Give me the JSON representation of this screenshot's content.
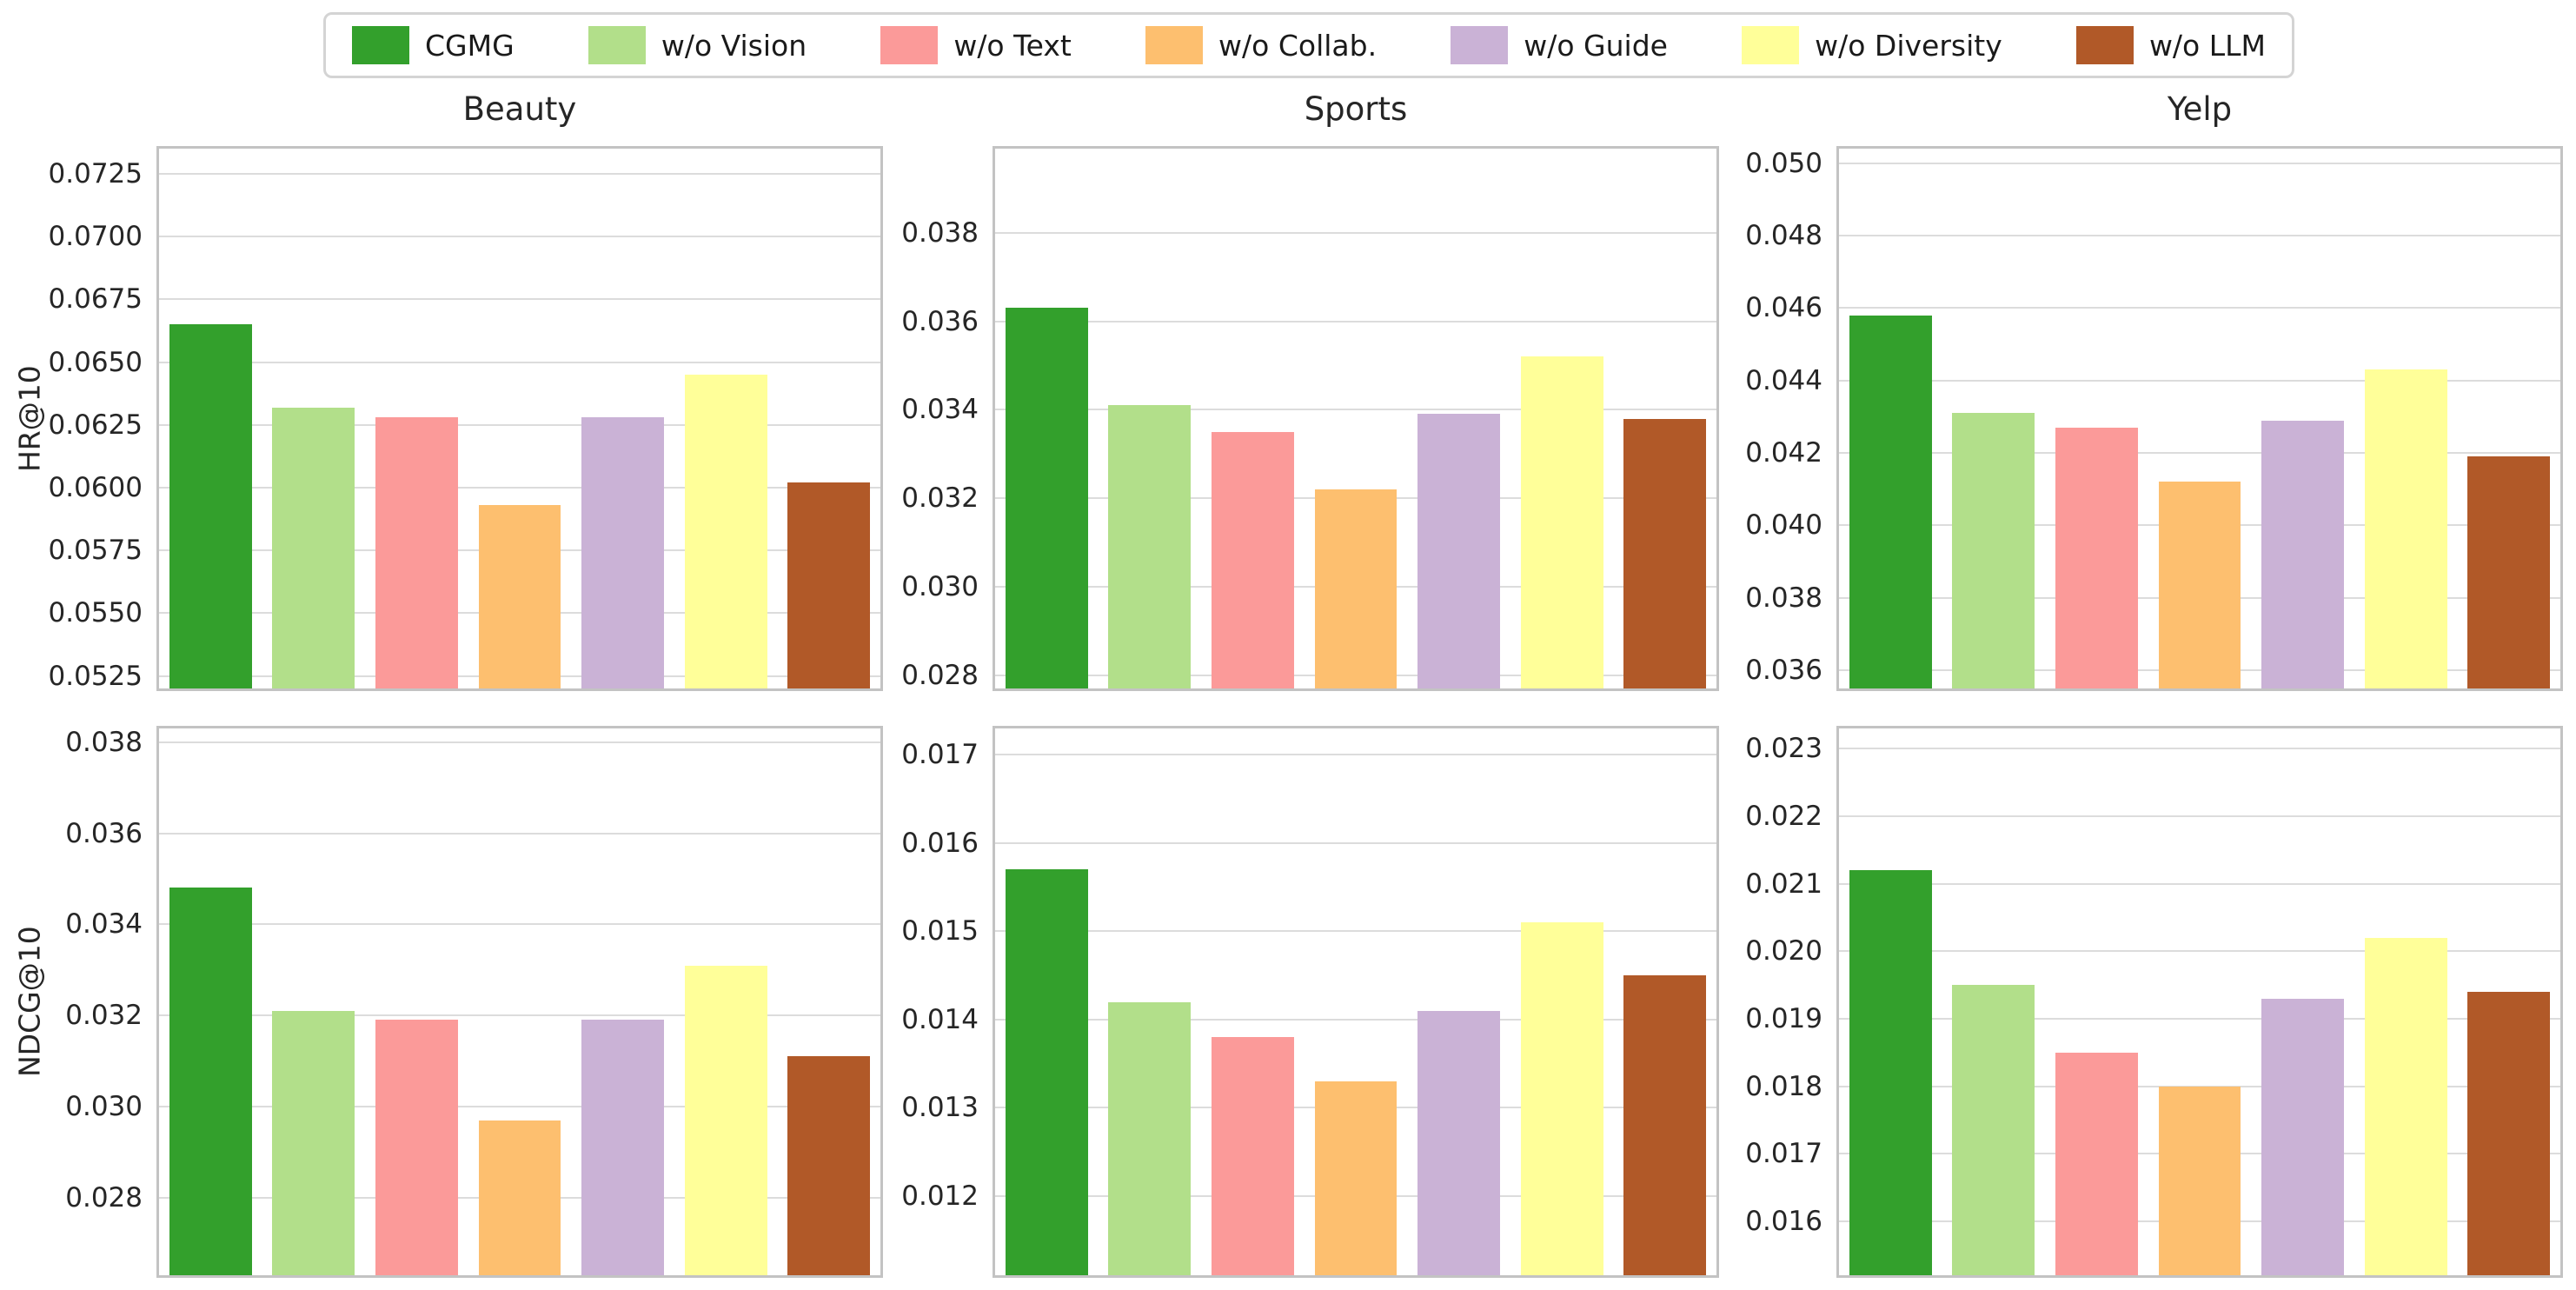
{
  "legend": {
    "items": [
      {
        "label": "CGMG",
        "color": "#33a02c"
      },
      {
        "label": "w/o Vision",
        "color": "#b2df8a"
      },
      {
        "label": "w/o Text",
        "color": "#fb9a99"
      },
      {
        "label": "w/o Collab.",
        "color": "#fdbf6f"
      },
      {
        "label": "w/o Guide",
        "color": "#cab2d6"
      },
      {
        "label": "w/o Diversity",
        "color": "#ffff99"
      },
      {
        "label": "w/o LLM",
        "color": "#b15928"
      }
    ]
  },
  "row_labels": [
    "HR@10",
    "NDCG@10"
  ],
  "column_titles": [
    "Beauty",
    "Sports",
    "Yelp"
  ],
  "chart_data": [
    {
      "type": "bar",
      "title": "Beauty",
      "ylabel": "HR@10",
      "grid": true,
      "legend_position": "top",
      "categories": [
        "CGMG",
        "w/o Vision",
        "w/o Text",
        "w/o Collab.",
        "w/o Guide",
        "w/o Diversity",
        "w/o LLM"
      ],
      "colors": [
        "#33a02c",
        "#b2df8a",
        "#fb9a99",
        "#fdbf6f",
        "#cab2d6",
        "#ffff99",
        "#b15928"
      ],
      "values": [
        0.0665,
        0.0632,
        0.0628,
        0.0593,
        0.0628,
        0.0645,
        0.0602
      ],
      "ylim": [
        0.052,
        0.0735
      ],
      "yticks": [
        0.0525,
        0.055,
        0.0575,
        0.06,
        0.0625,
        0.065,
        0.0675,
        0.07,
        0.0725
      ],
      "tick_decimals": 4
    },
    {
      "type": "bar",
      "title": "Sports",
      "ylabel": "HR@10",
      "grid": true,
      "legend_position": "top",
      "categories": [
        "CGMG",
        "w/o Vision",
        "w/o Text",
        "w/o Collab.",
        "w/o Guide",
        "w/o Diversity",
        "w/o LLM"
      ],
      "colors": [
        "#33a02c",
        "#b2df8a",
        "#fb9a99",
        "#fdbf6f",
        "#cab2d6",
        "#ffff99",
        "#b15928"
      ],
      "values": [
        0.0363,
        0.0341,
        0.0335,
        0.0322,
        0.0339,
        0.0352,
        0.0338
      ],
      "ylim": [
        0.0277,
        0.0399
      ],
      "yticks": [
        0.028,
        0.03,
        0.032,
        0.034,
        0.036,
        0.038
      ],
      "tick_decimals": 3
    },
    {
      "type": "bar",
      "title": "Yelp",
      "ylabel": "HR@10",
      "grid": true,
      "legend_position": "top",
      "categories": [
        "CGMG",
        "w/o Vision",
        "w/o Text",
        "w/o Collab.",
        "w/o Guide",
        "w/o Diversity",
        "w/o LLM"
      ],
      "colors": [
        "#33a02c",
        "#b2df8a",
        "#fb9a99",
        "#fdbf6f",
        "#cab2d6",
        "#ffff99",
        "#b15928"
      ],
      "values": [
        0.0458,
        0.0431,
        0.0427,
        0.0412,
        0.0429,
        0.0443,
        0.0419
      ],
      "ylim": [
        0.0355,
        0.0504
      ],
      "yticks": [
        0.036,
        0.038,
        0.04,
        0.042,
        0.044,
        0.046,
        0.048,
        0.05
      ],
      "tick_decimals": 3
    },
    {
      "type": "bar",
      "title": "Beauty",
      "ylabel": "NDCG@10",
      "grid": true,
      "legend_position": "top",
      "categories": [
        "CGMG",
        "w/o Vision",
        "w/o Text",
        "w/o Collab.",
        "w/o Guide",
        "w/o Diversity",
        "w/o LLM"
      ],
      "colors": [
        "#33a02c",
        "#b2df8a",
        "#fb9a99",
        "#fdbf6f",
        "#cab2d6",
        "#ffff99",
        "#b15928"
      ],
      "values": [
        0.0348,
        0.0321,
        0.0319,
        0.0297,
        0.0319,
        0.0331,
        0.0311
      ],
      "ylim": [
        0.0263,
        0.0383
      ],
      "yticks": [
        0.028,
        0.03,
        0.032,
        0.034,
        0.036,
        0.038
      ],
      "tick_decimals": 3
    },
    {
      "type": "bar",
      "title": "Sports",
      "ylabel": "NDCG@10",
      "grid": true,
      "legend_position": "top",
      "categories": [
        "CGMG",
        "w/o Vision",
        "w/o Text",
        "w/o Collab.",
        "w/o Guide",
        "w/o Diversity",
        "w/o LLM"
      ],
      "colors": [
        "#33a02c",
        "#b2df8a",
        "#fb9a99",
        "#fdbf6f",
        "#cab2d6",
        "#ffff99",
        "#b15928"
      ],
      "values": [
        0.0157,
        0.0142,
        0.0138,
        0.0133,
        0.0141,
        0.0151,
        0.0145
      ],
      "ylim": [
        0.0111,
        0.0173
      ],
      "yticks": [
        0.012,
        0.013,
        0.014,
        0.015,
        0.016,
        0.017
      ],
      "tick_decimals": 3
    },
    {
      "type": "bar",
      "title": "Yelp",
      "ylabel": "NDCG@10",
      "grid": true,
      "legend_position": "top",
      "categories": [
        "CGMG",
        "w/o Vision",
        "w/o Text",
        "w/o Collab.",
        "w/o Guide",
        "w/o Diversity",
        "w/o LLM"
      ],
      "colors": [
        "#33a02c",
        "#b2df8a",
        "#fb9a99",
        "#fdbf6f",
        "#cab2d6",
        "#ffff99",
        "#b15928"
      ],
      "values": [
        0.0212,
        0.0195,
        0.0185,
        0.018,
        0.0193,
        0.0202,
        0.0194
      ],
      "ylim": [
        0.0152,
        0.0233
      ],
      "yticks": [
        0.016,
        0.017,
        0.018,
        0.019,
        0.02,
        0.021,
        0.022,
        0.023
      ],
      "tick_decimals": 3
    }
  ]
}
